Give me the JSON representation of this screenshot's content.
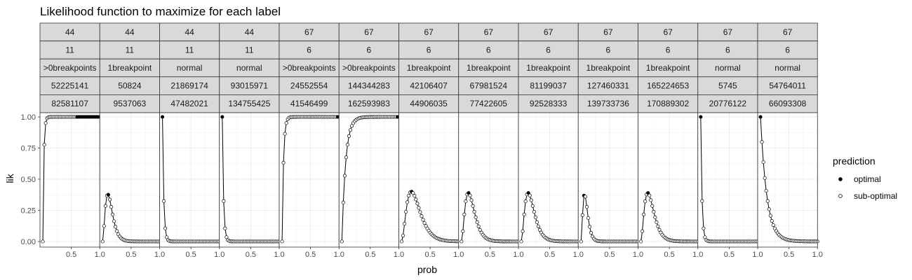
{
  "chart_data": {
    "type": "line",
    "title": "Likelihood function to maximize for each label",
    "xlabel": "prob",
    "ylabel": "lik",
    "xlim": [
      0,
      1
    ],
    "ylim": [
      0,
      1
    ],
    "x_ticks": [
      0.5,
      1.0
    ],
    "x_tick_labels": [
      "0.5",
      "1.0"
    ],
    "y_ticks": [
      0,
      0.25,
      0.5,
      0.75,
      1.0
    ],
    "y_tick_labels": [
      "0.00",
      "0.25",
      "0.50",
      "0.75",
      "1.00"
    ],
    "grid": true,
    "legend": {
      "title": "prediction",
      "position": "right",
      "entries": [
        {
          "label": "optimal",
          "marker": "filled"
        },
        {
          "label": "sub-optimal",
          "marker": "open"
        }
      ]
    },
    "facets": [
      {
        "strip": [
          "44",
          "11",
          ">0breakpoints",
          "52225141",
          "82581107"
        ],
        "shape": "rise",
        "k": 60,
        "peak_x": null,
        "peak_y": 1.0,
        "optimal_range": [
          0.6,
          1.0
        ]
      },
      {
        "strip": [
          "44",
          "11",
          "1breakpoint",
          "50824",
          "9537063"
        ],
        "shape": "peak",
        "k": null,
        "peak_x": 0.09,
        "peak_y": 0.38,
        "optimal_range": null
      },
      {
        "strip": [
          "44",
          "11",
          "normal",
          "21869174",
          "47482021"
        ],
        "shape": "decay",
        "k": 45,
        "peak_x": null,
        "peak_y": 1.0,
        "optimal_range": null
      },
      {
        "strip": [
          "44",
          "11",
          "normal",
          "93015971",
          "134755425"
        ],
        "shape": "decay",
        "k": 45,
        "peak_x": null,
        "peak_y": 1.0,
        "optimal_range": null
      },
      {
        "strip": [
          "67",
          "6",
          ">0breakpoints",
          "24552554",
          "41546499"
        ],
        "shape": "rise",
        "k": 40,
        "peak_x": null,
        "peak_y": 1.0,
        "optimal_range": [
          0.97,
          1.0
        ]
      },
      {
        "strip": [
          "67",
          "6",
          ">0breakpoints",
          "144344283",
          "162593983"
        ],
        "shape": "rise",
        "k": 15,
        "peak_x": null,
        "peak_y": 1.0,
        "optimal_range": [
          0.97,
          1.0
        ]
      },
      {
        "strip": [
          "67",
          "6",
          "1breakpoint",
          "42106407",
          "44906035"
        ],
        "shape": "peak",
        "k": null,
        "peak_x": 0.17,
        "peak_y": 0.4,
        "optimal_range": null
      },
      {
        "strip": [
          "67",
          "6",
          "1breakpoint",
          "67981524",
          "77422605"
        ],
        "shape": "peak",
        "k": null,
        "peak_x": 0.12,
        "peak_y": 0.39,
        "optimal_range": null
      },
      {
        "strip": [
          "67",
          "6",
          "1breakpoint",
          "81199037",
          "92528333"
        ],
        "shape": "peak",
        "k": null,
        "peak_x": 0.12,
        "peak_y": 0.39,
        "optimal_range": null
      },
      {
        "strip": [
          "67",
          "6",
          "1breakpoint",
          "127460331",
          "139733736"
        ],
        "shape": "peak",
        "k": null,
        "peak_x": 0.06,
        "peak_y": 0.38,
        "optimal_range": null
      },
      {
        "strip": [
          "67",
          "6",
          "1breakpoint",
          "165224653",
          "170889302"
        ],
        "shape": "peak",
        "k": null,
        "peak_x": 0.12,
        "peak_y": 0.39,
        "optimal_range": null
      },
      {
        "strip": [
          "67",
          "6",
          "normal",
          "5745",
          "20776122"
        ],
        "shape": "decay",
        "k": 45,
        "peak_x": null,
        "peak_y": 1.0,
        "optimal_range": null
      },
      {
        "strip": [
          "67",
          "6",
          "normal",
          "54764011",
          "66093308"
        ],
        "shape": "decay",
        "k": 9,
        "peak_x": null,
        "peak_y": 1.0,
        "optimal_range": null
      }
    ]
  }
}
